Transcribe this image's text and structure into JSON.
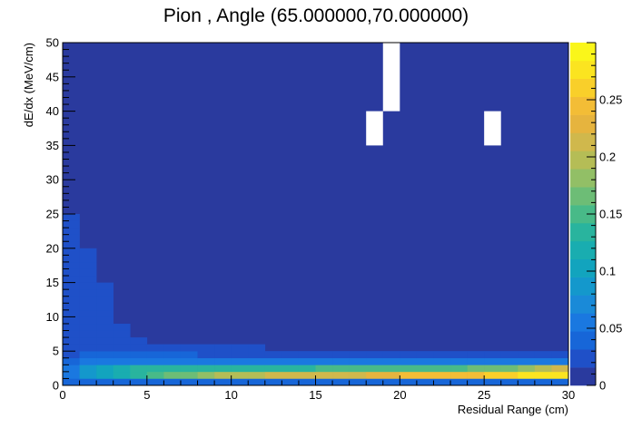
{
  "chart_data": {
    "type": "heatmap",
    "title": "Pion , Angle (65.000000,70.000000)",
    "xlabel": "Residual Range (cm)",
    "ylabel": "dE/dx (MeV/cm)",
    "xlim": [
      0,
      30
    ],
    "ylim": [
      0,
      50
    ],
    "zlim": [
      0,
      0.3
    ],
    "bin_width_x": 1,
    "bin_width_y": 1,
    "x_ticks": [
      "0",
      "5",
      "10",
      "15",
      "20",
      "25",
      "30"
    ],
    "y_ticks": [
      "0",
      "5",
      "10",
      "15",
      "20",
      "25",
      "30",
      "35",
      "40",
      "45",
      "50"
    ],
    "z_ticks": [
      "0",
      "0.05",
      "0.1",
      "0.15",
      "0.2",
      "0.25"
    ],
    "palette": [
      "#2a3a9e",
      "#1f50c8",
      "#1766d8",
      "#1a78e0",
      "#1a8ad8",
      "#1498cc",
      "#12a4be",
      "#19adb0",
      "#29b49e",
      "#48ba88",
      "#6dbd76",
      "#92bf66",
      "#b5bd56",
      "#d0b84c",
      "#e6b43e",
      "#f3bd36",
      "#f9cf2a",
      "#fbe420",
      "#faf61a"
    ],
    "background_value": 0.002,
    "empty_bins": [
      {
        "x": 19,
        "y_from": 40,
        "y_to": 50
      },
      {
        "x": 18,
        "y_from": 35,
        "y_to": 40
      },
      {
        "x": 25,
        "y_from": 35,
        "y_to": 40
      }
    ],
    "bins": [
      {
        "x": 0,
        "y": 0,
        "v": 0.04
      },
      {
        "x": 0,
        "y": 1,
        "v": 0.06
      },
      {
        "x": 0,
        "y": 2,
        "v": 0.05
      },
      {
        "x": 0,
        "y": 3,
        "v": 0.035
      },
      {
        "x": 0,
        "y": 4,
        "v": 0.03
      },
      {
        "x": 0,
        "y": 5,
        "v": 0.028
      },
      {
        "x": 0,
        "y": 6,
        "v": 0.026
      },
      {
        "x": 0,
        "y": 7,
        "v": 0.026
      },
      {
        "x": 0,
        "y": 8,
        "v": 0.025
      },
      {
        "x": 0,
        "y": 9,
        "v": 0.025
      },
      {
        "x": 0,
        "y": 10,
        "v": 0.025
      },
      {
        "x": 0,
        "y": 11,
        "v": 0.025
      },
      {
        "x": 0,
        "y": 12,
        "v": 0.025
      },
      {
        "x": 0,
        "y": 13,
        "v": 0.025
      },
      {
        "x": 0,
        "y": 14,
        "v": 0.025
      },
      {
        "x": 0,
        "y": 15,
        "v": 0.025
      },
      {
        "x": 0,
        "y": 16,
        "v": 0.025
      },
      {
        "x": 0,
        "y": 17,
        "v": 0.025
      },
      {
        "x": 0,
        "y": 18,
        "v": 0.025
      },
      {
        "x": 0,
        "y": 19,
        "v": 0.025
      },
      {
        "x": 0,
        "y": 20,
        "v": 0.025
      },
      {
        "x": 0,
        "y": 21,
        "v": 0.025
      },
      {
        "x": 0,
        "y": 22,
        "v": 0.025
      },
      {
        "x": 0,
        "y": 23,
        "v": 0.025
      },
      {
        "x": 0,
        "y": 24,
        "v": 0.025
      },
      {
        "x": 1,
        "y": 0,
        "v": 0.04
      },
      {
        "x": 1,
        "y": 1,
        "v": 0.09
      },
      {
        "x": 1,
        "y": 2,
        "v": 0.09
      },
      {
        "x": 1,
        "y": 3,
        "v": 0.06
      },
      {
        "x": 1,
        "y": 4,
        "v": 0.04
      },
      {
        "x": 1,
        "y": 5,
        "v": 0.03
      },
      {
        "x": 1,
        "y": 6,
        "v": 0.028
      },
      {
        "x": 1,
        "y": 7,
        "v": 0.026
      },
      {
        "x": 1,
        "y": 8,
        "v": 0.025
      },
      {
        "x": 1,
        "y": 9,
        "v": 0.025
      },
      {
        "x": 1,
        "y": 10,
        "v": 0.025
      },
      {
        "x": 1,
        "y": 11,
        "v": 0.025
      },
      {
        "x": 1,
        "y": 12,
        "v": 0.025
      },
      {
        "x": 1,
        "y": 13,
        "v": 0.025
      },
      {
        "x": 1,
        "y": 14,
        "v": 0.025
      },
      {
        "x": 1,
        "y": 15,
        "v": 0.025
      },
      {
        "x": 1,
        "y": 16,
        "v": 0.025
      },
      {
        "x": 1,
        "y": 17,
        "v": 0.025
      },
      {
        "x": 1,
        "y": 18,
        "v": 0.025
      },
      {
        "x": 1,
        "y": 19,
        "v": 0.025
      },
      {
        "x": 2,
        "y": 0,
        "v": 0.045
      },
      {
        "x": 2,
        "y": 1,
        "v": 0.1
      },
      {
        "x": 2,
        "y": 2,
        "v": 0.1
      },
      {
        "x": 2,
        "y": 3,
        "v": 0.06
      },
      {
        "x": 2,
        "y": 4,
        "v": 0.04
      },
      {
        "x": 2,
        "y": 5,
        "v": 0.03
      },
      {
        "x": 2,
        "y": 6,
        "v": 0.028
      },
      {
        "x": 2,
        "y": 7,
        "v": 0.026
      },
      {
        "x": 2,
        "y": 8,
        "v": 0.025
      },
      {
        "x": 2,
        "y": 9,
        "v": 0.025
      },
      {
        "x": 2,
        "y": 10,
        "v": 0.025
      },
      {
        "x": 2,
        "y": 11,
        "v": 0.025
      },
      {
        "x": 2,
        "y": 12,
        "v": 0.025
      },
      {
        "x": 2,
        "y": 13,
        "v": 0.025
      },
      {
        "x": 2,
        "y": 14,
        "v": 0.025
      },
      {
        "x": 3,
        "y": 0,
        "v": 0.045
      },
      {
        "x": 3,
        "y": 1,
        "v": 0.12
      },
      {
        "x": 3,
        "y": 2,
        "v": 0.12
      },
      {
        "x": 3,
        "y": 3,
        "v": 0.06
      },
      {
        "x": 3,
        "y": 4,
        "v": 0.04
      },
      {
        "x": 3,
        "y": 5,
        "v": 0.03
      },
      {
        "x": 3,
        "y": 6,
        "v": 0.028
      },
      {
        "x": 3,
        "y": 7,
        "v": 0.026
      },
      {
        "x": 3,
        "y": 8,
        "v": 0.025
      },
      {
        "x": 4,
        "y": 0,
        "v": 0.045
      },
      {
        "x": 4,
        "y": 1,
        "v": 0.13
      },
      {
        "x": 4,
        "y": 2,
        "v": 0.13
      },
      {
        "x": 4,
        "y": 3,
        "v": 0.06
      },
      {
        "x": 4,
        "y": 4,
        "v": 0.04
      },
      {
        "x": 4,
        "y": 5,
        "v": 0.03
      },
      {
        "x": 4,
        "y": 6,
        "v": 0.026
      },
      {
        "x": 5,
        "y": 0,
        "v": 0.045
      },
      {
        "x": 5,
        "y": 1,
        "v": 0.15
      },
      {
        "x": 5,
        "y": 2,
        "v": 0.13
      },
      {
        "x": 5,
        "y": 3,
        "v": 0.06
      },
      {
        "x": 5,
        "y": 4,
        "v": 0.035
      },
      {
        "x": 5,
        "y": 5,
        "v": 0.026
      },
      {
        "x": 6,
        "y": 0,
        "v": 0.045
      },
      {
        "x": 6,
        "y": 1,
        "v": 0.16
      },
      {
        "x": 6,
        "y": 2,
        "v": 0.13
      },
      {
        "x": 6,
        "y": 3,
        "v": 0.055
      },
      {
        "x": 6,
        "y": 4,
        "v": 0.035
      },
      {
        "x": 6,
        "y": 5,
        "v": 0.025
      },
      {
        "x": 7,
        "y": 0,
        "v": 0.045
      },
      {
        "x": 7,
        "y": 1,
        "v": 0.17
      },
      {
        "x": 7,
        "y": 2,
        "v": 0.13
      },
      {
        "x": 7,
        "y": 3,
        "v": 0.055
      },
      {
        "x": 7,
        "y": 4,
        "v": 0.035
      },
      {
        "x": 7,
        "y": 5,
        "v": 0.025
      },
      {
        "x": 8,
        "y": 0,
        "v": 0.045
      },
      {
        "x": 8,
        "y": 1,
        "v": 0.18
      },
      {
        "x": 8,
        "y": 2,
        "v": 0.13
      },
      {
        "x": 8,
        "y": 3,
        "v": 0.05
      },
      {
        "x": 8,
        "y": 4,
        "v": 0.03
      },
      {
        "x": 8,
        "y": 5,
        "v": 0.025
      },
      {
        "x": 9,
        "y": 0,
        "v": 0.045
      },
      {
        "x": 9,
        "y": 1,
        "v": 0.19
      },
      {
        "x": 9,
        "y": 2,
        "v": 0.13
      },
      {
        "x": 9,
        "y": 3,
        "v": 0.05
      },
      {
        "x": 9,
        "y": 4,
        "v": 0.03
      },
      {
        "x": 9,
        "y": 5,
        "v": 0.025
      },
      {
        "x": 10,
        "y": 0,
        "v": 0.045
      },
      {
        "x": 10,
        "y": 1,
        "v": 0.2
      },
      {
        "x": 10,
        "y": 2,
        "v": 0.13
      },
      {
        "x": 10,
        "y": 3,
        "v": 0.05
      },
      {
        "x": 10,
        "y": 4,
        "v": 0.03
      },
      {
        "x": 10,
        "y": 5,
        "v": 0.025
      },
      {
        "x": 11,
        "y": 0,
        "v": 0.045
      },
      {
        "x": 11,
        "y": 1,
        "v": 0.2
      },
      {
        "x": 11,
        "y": 2,
        "v": 0.13
      },
      {
        "x": 11,
        "y": 3,
        "v": 0.05
      },
      {
        "x": 11,
        "y": 4,
        "v": 0.03
      },
      {
        "x": 11,
        "y": 5,
        "v": 0.025
      },
      {
        "x": 12,
        "y": 0,
        "v": 0.045
      },
      {
        "x": 12,
        "y": 1,
        "v": 0.21
      },
      {
        "x": 12,
        "y": 2,
        "v": 0.14
      },
      {
        "x": 12,
        "y": 3,
        "v": 0.05
      },
      {
        "x": 12,
        "y": 4,
        "v": 0.03
      },
      {
        "x": 13,
        "y": 0,
        "v": 0.045
      },
      {
        "x": 13,
        "y": 1,
        "v": 0.21
      },
      {
        "x": 13,
        "y": 2,
        "v": 0.14
      },
      {
        "x": 13,
        "y": 3,
        "v": 0.05
      },
      {
        "x": 13,
        "y": 4,
        "v": 0.03
      },
      {
        "x": 14,
        "y": 0,
        "v": 0.045
      },
      {
        "x": 14,
        "y": 1,
        "v": 0.22
      },
      {
        "x": 14,
        "y": 2,
        "v": 0.14
      },
      {
        "x": 14,
        "y": 3,
        "v": 0.05
      },
      {
        "x": 14,
        "y": 4,
        "v": 0.03
      },
      {
        "x": 15,
        "y": 0,
        "v": 0.045
      },
      {
        "x": 15,
        "y": 1,
        "v": 0.22
      },
      {
        "x": 15,
        "y": 2,
        "v": 0.15
      },
      {
        "x": 15,
        "y": 3,
        "v": 0.05
      },
      {
        "x": 15,
        "y": 4,
        "v": 0.03
      },
      {
        "x": 16,
        "y": 0,
        "v": 0.045
      },
      {
        "x": 16,
        "y": 1,
        "v": 0.22
      },
      {
        "x": 16,
        "y": 2,
        "v": 0.15
      },
      {
        "x": 16,
        "y": 3,
        "v": 0.05
      },
      {
        "x": 16,
        "y": 4,
        "v": 0.03
      },
      {
        "x": 17,
        "y": 0,
        "v": 0.045
      },
      {
        "x": 17,
        "y": 1,
        "v": 0.22
      },
      {
        "x": 17,
        "y": 2,
        "v": 0.15
      },
      {
        "x": 17,
        "y": 3,
        "v": 0.05
      },
      {
        "x": 17,
        "y": 4,
        "v": 0.03
      },
      {
        "x": 18,
        "y": 0,
        "v": 0.045
      },
      {
        "x": 18,
        "y": 1,
        "v": 0.23
      },
      {
        "x": 18,
        "y": 2,
        "v": 0.15
      },
      {
        "x": 18,
        "y": 3,
        "v": 0.05
      },
      {
        "x": 18,
        "y": 4,
        "v": 0.03
      },
      {
        "x": 19,
        "y": 0,
        "v": 0.045
      },
      {
        "x": 19,
        "y": 1,
        "v": 0.23
      },
      {
        "x": 19,
        "y": 2,
        "v": 0.15
      },
      {
        "x": 19,
        "y": 3,
        "v": 0.05
      },
      {
        "x": 19,
        "y": 4,
        "v": 0.025
      },
      {
        "x": 20,
        "y": 0,
        "v": 0.045
      },
      {
        "x": 20,
        "y": 1,
        "v": 0.24
      },
      {
        "x": 20,
        "y": 2,
        "v": 0.15
      },
      {
        "x": 20,
        "y": 3,
        "v": 0.05
      },
      {
        "x": 20,
        "y": 4,
        "v": 0.025
      },
      {
        "x": 21,
        "y": 0,
        "v": 0.045
      },
      {
        "x": 21,
        "y": 1,
        "v": 0.24
      },
      {
        "x": 21,
        "y": 2,
        "v": 0.15
      },
      {
        "x": 21,
        "y": 3,
        "v": 0.05
      },
      {
        "x": 21,
        "y": 4,
        "v": 0.025
      },
      {
        "x": 22,
        "y": 0,
        "v": 0.045
      },
      {
        "x": 22,
        "y": 1,
        "v": 0.25
      },
      {
        "x": 22,
        "y": 2,
        "v": 0.15
      },
      {
        "x": 22,
        "y": 3,
        "v": 0.05
      },
      {
        "x": 22,
        "y": 4,
        "v": 0.03
      },
      {
        "x": 23,
        "y": 0,
        "v": 0.045
      },
      {
        "x": 23,
        "y": 1,
        "v": 0.25
      },
      {
        "x": 23,
        "y": 2,
        "v": 0.15
      },
      {
        "x": 23,
        "y": 3,
        "v": 0.05
      },
      {
        "x": 23,
        "y": 4,
        "v": 0.025
      },
      {
        "x": 24,
        "y": 0,
        "v": 0.045
      },
      {
        "x": 24,
        "y": 1,
        "v": 0.25
      },
      {
        "x": 24,
        "y": 2,
        "v": 0.16
      },
      {
        "x": 24,
        "y": 3,
        "v": 0.05
      },
      {
        "x": 24,
        "y": 4,
        "v": 0.025
      },
      {
        "x": 25,
        "y": 0,
        "v": 0.045
      },
      {
        "x": 25,
        "y": 1,
        "v": 0.26
      },
      {
        "x": 25,
        "y": 2,
        "v": 0.16
      },
      {
        "x": 25,
        "y": 3,
        "v": 0.05
      },
      {
        "x": 25,
        "y": 4,
        "v": 0.025
      },
      {
        "x": 26,
        "y": 0,
        "v": 0.045
      },
      {
        "x": 26,
        "y": 1,
        "v": 0.26
      },
      {
        "x": 26,
        "y": 2,
        "v": 0.17
      },
      {
        "x": 26,
        "y": 3,
        "v": 0.05
      },
      {
        "x": 26,
        "y": 4,
        "v": 0.025
      },
      {
        "x": 27,
        "y": 0,
        "v": 0.045
      },
      {
        "x": 27,
        "y": 1,
        "v": 0.27
      },
      {
        "x": 27,
        "y": 2,
        "v": 0.18
      },
      {
        "x": 27,
        "y": 3,
        "v": 0.05
      },
      {
        "x": 27,
        "y": 4,
        "v": 0.025
      },
      {
        "x": 28,
        "y": 0,
        "v": 0.045
      },
      {
        "x": 28,
        "y": 1,
        "v": 0.28
      },
      {
        "x": 28,
        "y": 2,
        "v": 0.2
      },
      {
        "x": 28,
        "y": 3,
        "v": 0.05
      },
      {
        "x": 28,
        "y": 4,
        "v": 0.025
      },
      {
        "x": 29,
        "y": 0,
        "v": 0.045
      },
      {
        "x": 29,
        "y": 1,
        "v": 0.28
      },
      {
        "x": 29,
        "y": 2,
        "v": 0.22
      },
      {
        "x": 29,
        "y": 3,
        "v": 0.05
      },
      {
        "x": 29,
        "y": 4,
        "v": 0.025
      }
    ]
  }
}
